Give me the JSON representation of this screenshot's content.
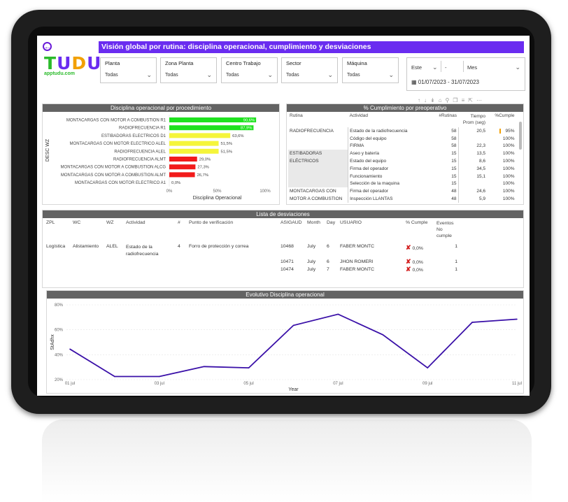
{
  "header": {
    "title": "Visión global por rutina: disciplina operacional, cumplimiento y desviaciones",
    "logo_text": "TUDU",
    "logo_url": "apptudu.com",
    "back_icon": "arrow-left-circle-icon"
  },
  "colors": {
    "accent": "#6a2cf0",
    "green": "#1fe21f",
    "yellow": "#f5f53a",
    "red": "#f21b1b",
    "line": "#3a10a8"
  },
  "filters": [
    {
      "label": "Planta",
      "value": "Todas"
    },
    {
      "label": "Zona Planta",
      "value": "Todas"
    },
    {
      "label": "Centro Trabajo",
      "value": "Todas"
    },
    {
      "label": "Sector",
      "value": "Todas"
    },
    {
      "label": "Máquina",
      "value": "Todas"
    }
  ],
  "date_filter": {
    "period": "Este",
    "dash": "-",
    "unit": "Mes",
    "range": "01/07/2023 - 31/07/2023",
    "icon": "calendar-icon"
  },
  "disciplina": {
    "title": "Disciplina operacional por procedimiento",
    "ylabel": "DESC WZ",
    "xlabel": "Disciplina Operacional",
    "ticks": [
      "0%",
      "50%",
      "100%"
    ]
  },
  "cumplimiento": {
    "title": "% Cumplimiento por preoperativo",
    "headers": {
      "rutina": "Rutina",
      "actividad": "Actividad",
      "rutinas": "#Rutinas",
      "tiempo": "Tiempo Prom (seg)",
      "cumple": "%Cumple"
    },
    "rows": [
      {
        "rutina": "RADIOFRECUENCIA",
        "actividad": "Estado de la radiofrecuencia",
        "rutinas": "58",
        "tiempo": "20,5",
        "cumple": "95%"
      },
      {
        "rutina": "",
        "actividad": "Código del equipo",
        "rutinas": "58",
        "tiempo": "",
        "cumple": "100%"
      },
      {
        "rutina": "",
        "actividad": "FIRMA",
        "rutinas": "58",
        "tiempo": "22,3",
        "cumple": "100%"
      },
      {
        "rutina": "ESTIBADORAS",
        "actividad": "Aseo y batería",
        "rutinas": "15",
        "tiempo": "13,5",
        "cumple": "100%"
      },
      {
        "rutina": "ELÉCTRICOS",
        "actividad": "Estado del equipo",
        "rutinas": "15",
        "tiempo": "8,6",
        "cumple": "100%"
      },
      {
        "rutina": "",
        "actividad": "Firma del operador",
        "rutinas": "15",
        "tiempo": "34,5",
        "cumple": "100%"
      },
      {
        "rutina": "",
        "actividad": "Funcionamiento",
        "rutinas": "15",
        "tiempo": "15,1",
        "cumple": "100%"
      },
      {
        "rutina": "",
        "actividad": "Selección de la maquina",
        "rutinas": "15",
        "tiempo": "",
        "cumple": "100%"
      },
      {
        "rutina": "MONTACARGAS CON",
        "actividad": "Firma del operador",
        "rutinas": "48",
        "tiempo": "24,6",
        "cumple": "100%"
      },
      {
        "rutina": "MOTOR A COMBUSTION",
        "actividad": "Inspección LLANTAS",
        "rutinas": "48",
        "tiempo": "5,9",
        "cumple": "100%"
      }
    ]
  },
  "desviaciones": {
    "title": "Lista de desviaciones",
    "headers": {
      "zpl": "ZPL",
      "wc": "WC",
      "wz": "WZ",
      "actividad": "Actividad",
      "num": "#",
      "punto": "Punto de verificación",
      "asigaud": "ASIGAUD",
      "month": "Month",
      "day": "Day",
      "usuario": "USUARIO",
      "cumple": "% Cumple",
      "eventos": "Eventos No cumple"
    },
    "group": {
      "zpl": "Logística",
      "wc": "Alistamiento",
      "wz": "ALEL",
      "actividad": "Estado de la radiofrecuencia",
      "num": "4",
      "punto": "Forro de protección y correa"
    },
    "rows": [
      {
        "asigaud": "10468",
        "month": "July",
        "day": "6",
        "usuario": "FABER MONTC",
        "cumple": "0,0%",
        "eventos": "1"
      },
      {
        "asigaud": "10471",
        "month": "July",
        "day": "6",
        "usuario": "JHON ROMERI",
        "cumple": "0,0%",
        "eventos": "1"
      },
      {
        "asigaud": "10474",
        "month": "July",
        "day": "7",
        "usuario": "FABER MONTC",
        "cumple": "0,0%",
        "eventos": "1"
      }
    ]
  },
  "evolutivo": {
    "title": "Evolutivo Disciplina operacional",
    "ylabel": "StAdhx",
    "xlabel": "Year"
  },
  "chart_data": [
    {
      "type": "bar",
      "title": "Disciplina operacional por procedimiento",
      "xlabel": "Disciplina Operacional",
      "ylabel": "DESC WZ",
      "xlim": [
        0,
        100
      ],
      "categories": [
        "MONTACARGAS CON MOTOR A COMBUSTION R1",
        "RADIOFRECUENCIA R1",
        "ESTIBADORAS ELECTRICOS D1",
        "MONTACARGAS CON MOTOR ELECTRICO ALEL",
        "RADIOFRECUENCIA ALEL",
        "RADIOFRECUENCIA ALMT",
        "MONTACARGAS CON MOTOR A COMBUSTION ALCG",
        "MONTACARGAS CON MOTOR A COMBUSTION ALMT",
        "MONTACARGAS CON MOTOR ELECTRICO A1"
      ],
      "values": [
        90.6,
        87.9,
        63.6,
        51.5,
        51.5,
        29.0,
        27.3,
        26.7,
        0.0
      ],
      "labels": [
        "90,6%",
        "87,9%",
        "63,6%",
        "51,5%",
        "51,5%",
        "29,0%",
        "27,3%",
        "26,7%",
        "0,0%"
      ],
      "colors": [
        "#1fe21f",
        "#1fe21f",
        "#f5f53a",
        "#f5f53a",
        "#f5f53a",
        "#f21b1b",
        "#f21b1b",
        "#f21b1b",
        "#f21b1b"
      ]
    },
    {
      "type": "line",
      "title": "Evolutivo Disciplina operacional",
      "xlabel": "Year",
      "ylabel": "StAdhx",
      "ylim": [
        20,
        80
      ],
      "y_ticks": [
        "20%",
        "40%",
        "60%",
        "80%"
      ],
      "x_ticks": [
        "01 jul",
        "03 jul",
        "05 jul",
        "07 jul",
        "09 jul",
        "11 jul"
      ],
      "x": [
        "01 jul",
        "02 jul",
        "03 jul",
        "04 jul",
        "05 jul",
        "06 jul",
        "07 jul",
        "08 jul",
        "09 jul",
        "10 jul",
        "11 jul"
      ],
      "values": [
        44.5,
        22.5,
        22.5,
        30.5,
        29.5,
        63.5,
        72.5,
        56.0,
        29.5,
        66.0,
        68.5
      ]
    }
  ]
}
